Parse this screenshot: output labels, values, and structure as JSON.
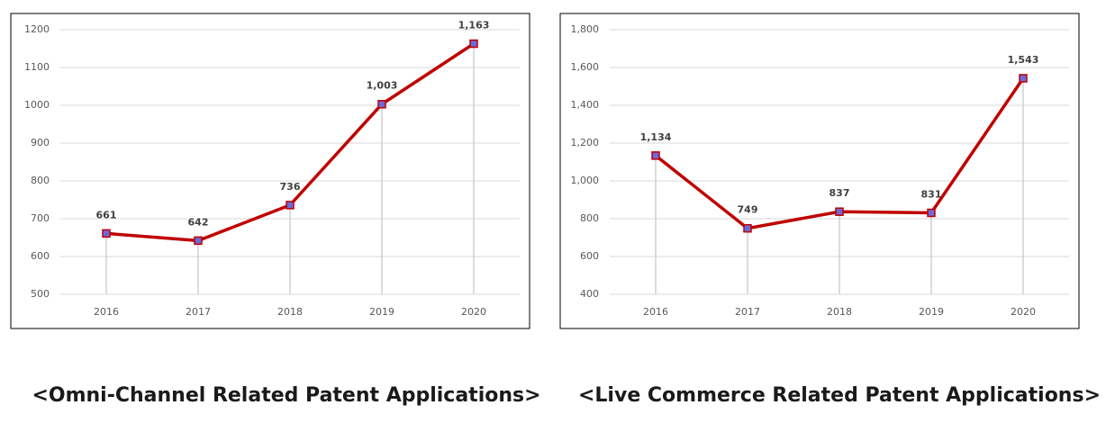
{
  "chart_data": [
    {
      "type": "line",
      "caption": "<Omni-Channel Related Patent Applications>",
      "categories": [
        "2016",
        "2017",
        "2018",
        "2019",
        "2020"
      ],
      "values": [
        661,
        642,
        736,
        1003,
        1163
      ],
      "value_labels": [
        "661",
        "642",
        "736",
        "1,003",
        "1,163"
      ],
      "color": "#c00000",
      "marker_color": "#6a6ad8",
      "ylim": [
        500,
        1200
      ],
      "yticks": [
        500,
        600,
        700,
        800,
        900,
        1000,
        1100,
        1200
      ],
      "grid": true
    },
    {
      "type": "line",
      "caption": "<Live Commerce Related Patent Applications>",
      "categories": [
        "2016",
        "2017",
        "2018",
        "2019",
        "2020"
      ],
      "values": [
        1134,
        749,
        837,
        831,
        1543
      ],
      "value_labels": [
        "1,134",
        "749",
        "837",
        "831",
        "1,543"
      ],
      "color": "#c00000",
      "marker_color": "#6a6ad8",
      "ylim": [
        400,
        1800
      ],
      "yticks": [
        400,
        600,
        800,
        {
          "value": 1000,
          "label": "1,000"
        },
        {
          "value": 1200,
          "label": "1,200"
        },
        {
          "value": 1400,
          "label": "1,400"
        },
        {
          "value": 1600,
          "label": "1,600"
        },
        {
          "value": 1800,
          "label": "1,800"
        }
      ],
      "grid": true
    }
  ]
}
